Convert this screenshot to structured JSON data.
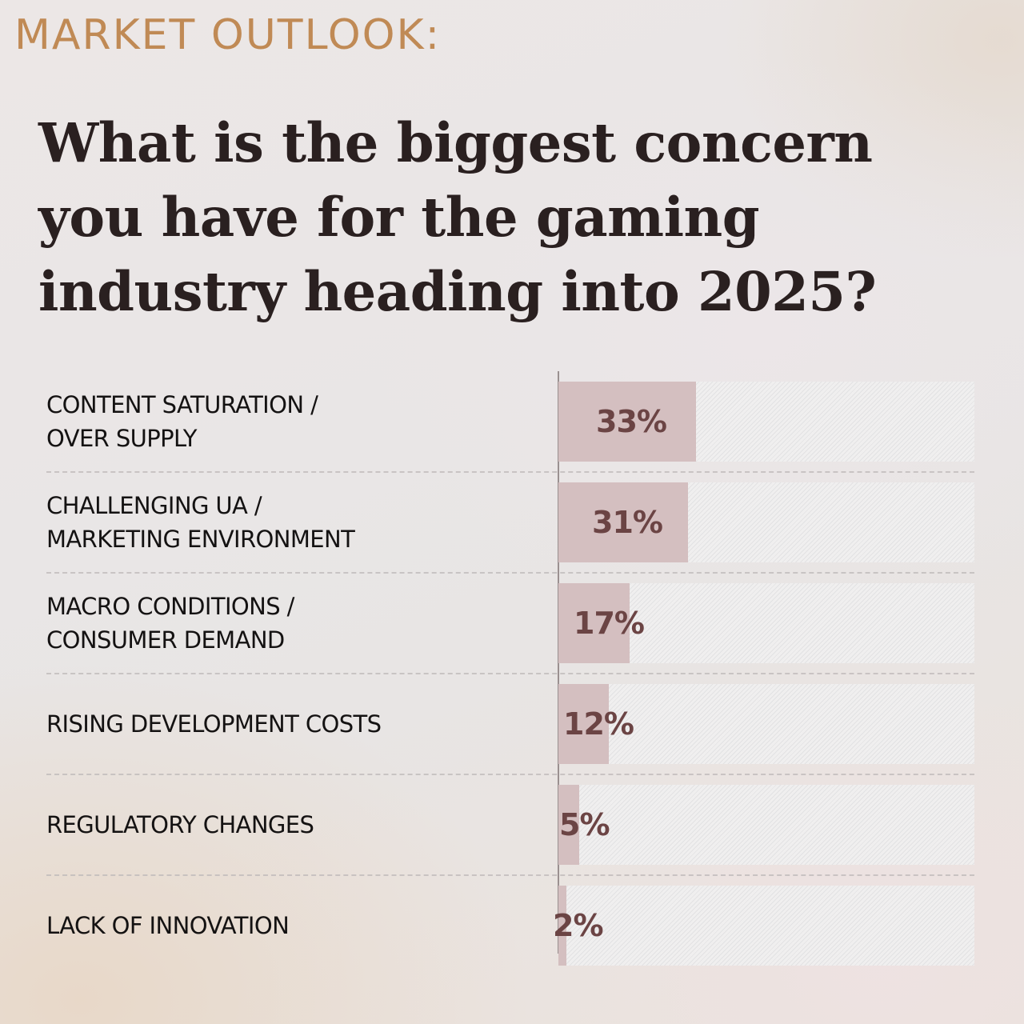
{
  "header": {
    "kicker": "MARKET OUTLOOK:",
    "title_lines": [
      "What is the biggest concern",
      "you have for the gaming",
      "industry heading into 2025?"
    ]
  },
  "colors": {
    "kicker": "#c08a55",
    "title": "#2a2020",
    "bar_fill": "#d4bfc0",
    "bar_track": "#f0efef",
    "value_text": "#6b4444",
    "label_text": "#141212"
  },
  "chart_data": {
    "type": "bar",
    "orientation": "horizontal",
    "title": "What is the biggest concern you have for the gaming industry heading into 2025?",
    "subtitle": "MARKET OUTLOOK:",
    "categories": [
      "Content Saturation / Over Supply",
      "Challenging UA / Marketing Environment",
      "Macro Conditions / Consumer Demand",
      "Rising Development Costs",
      "Regulatory Changes",
      "Lack of Innovation"
    ],
    "values": [
      33,
      31,
      17,
      12,
      5,
      2
    ],
    "unit": "%",
    "xlabel": "",
    "ylabel": "",
    "xlim": [
      0,
      100
    ],
    "grid": false,
    "legend": "none",
    "data_labels": [
      "33%",
      "31%",
      "17%",
      "12%",
      "5%",
      "2%"
    ]
  },
  "rows": [
    {
      "label_lines": [
        "CONTENT SATURATION /",
        "OVER SUPPLY"
      ],
      "value": 33,
      "value_label": "33%"
    },
    {
      "label_lines": [
        "CHALLENGING UA /",
        "MARKETING ENVIRONMENT"
      ],
      "value": 31,
      "value_label": "31%"
    },
    {
      "label_lines": [
        "MACRO CONDITIONS /",
        "CONSUMER DEMAND"
      ],
      "value": 17,
      "value_label": "17%"
    },
    {
      "label_lines": [
        "RISING DEVELOPMENT COSTS"
      ],
      "value": 12,
      "value_label": "12%"
    },
    {
      "label_lines": [
        "REGULATORY CHANGES"
      ],
      "value": 5,
      "value_label": "5%"
    },
    {
      "label_lines": [
        "LACK OF INNOVATION"
      ],
      "value": 2,
      "value_label": "2%"
    }
  ]
}
